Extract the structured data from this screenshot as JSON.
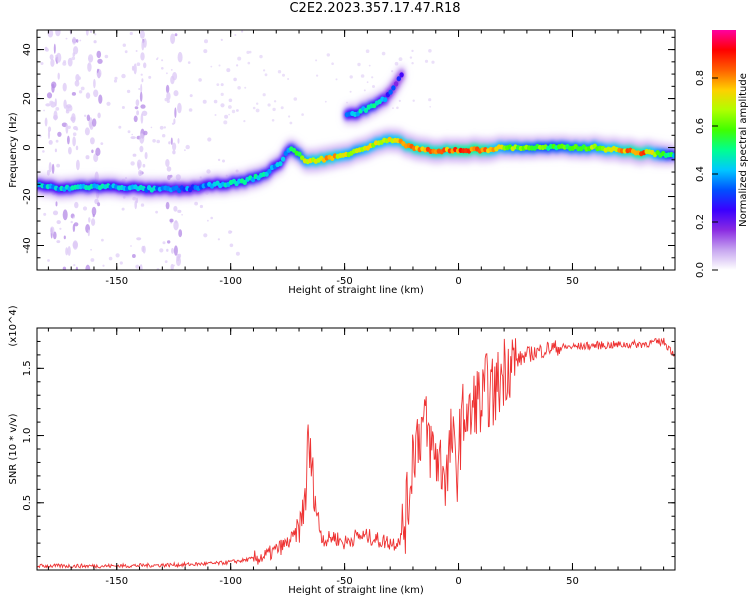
{
  "title": "C2E2.2023.357.17.47.R18",
  "chart_data": [
    {
      "type": "heatmap",
      "xlabel": "Height of straight line (km)",
      "ylabel": "Frequency (Hz)",
      "xlim": [
        -185,
        95
      ],
      "ylim": [
        -50,
        48
      ],
      "x_ticks": [
        -150,
        -100,
        -50,
        0,
        50
      ],
      "y_ticks": [
        -40,
        -20,
        0,
        20,
        40
      ],
      "colorbar": {
        "label": "Normalized spectral amplitude",
        "range": [
          0.0,
          1.0
        ],
        "ticks": [
          "0.0",
          "0.2",
          "0.4",
          "0.6",
          "0.8"
        ],
        "colormap": [
          "#ffffff",
          "#c7a6f0",
          "#8a2be2",
          "#3a00ff",
          "#0050ff",
          "#00c8ff",
          "#00ff90",
          "#40ff00",
          "#b0ff00",
          "#ffd000",
          "#ff6000",
          "#ff0000",
          "#ff00a0"
        ]
      },
      "ridge": {
        "x": [
          -185,
          -175,
          -165,
          -150,
          -135,
          -120,
          -105,
          -95,
          -85,
          -78,
          -74,
          -70,
          -66,
          -62,
          -55,
          -50,
          -45,
          -40,
          -35,
          -30,
          -25,
          -20,
          -15,
          -10,
          -5,
          0,
          10,
          20,
          40,
          60,
          80,
          95
        ],
        "freq": [
          -15,
          -17,
          -16,
          -16,
          -17,
          -17,
          -15,
          -14,
          -11,
          -6,
          0,
          -3,
          -6,
          -5,
          -4,
          -3,
          -1,
          0,
          2,
          3,
          2,
          0,
          -1,
          -2,
          -1,
          -1,
          -1,
          0,
          0,
          0,
          -2,
          -3
        ],
        "amplitude": [
          0.45,
          0.45,
          0.5,
          0.45,
          0.45,
          0.4,
          0.45,
          0.5,
          0.5,
          0.45,
          0.5,
          0.6,
          0.75,
          0.8,
          0.8,
          0.75,
          0.7,
          0.75,
          0.75,
          0.75,
          0.8,
          0.85,
          0.85,
          0.85,
          0.85,
          0.9,
          0.9,
          0.7,
          0.6,
          0.7,
          0.9,
          0.5
        ]
      },
      "branch": {
        "x": [
          -49,
          -45,
          -40,
          -36,
          -32,
          -28,
          -24
        ],
        "freq": [
          13,
          14,
          16,
          18,
          20,
          25,
          31
        ],
        "amplitude": [
          0.45,
          0.45,
          0.55,
          0.5,
          0.4,
          0.3,
          0.25
        ]
      },
      "noise_columns_x": [
        -178,
        -170,
        -160,
        -140,
        -125
      ]
    },
    {
      "type": "line",
      "xlabel": "Height of straight line (km)",
      "ylabel": "SNR (10 * v/v)",
      "y_multiplier": "(x10^4)",
      "xlim": [
        -185,
        95
      ],
      "ylim": [
        0,
        1.8
      ],
      "x_ticks": [
        -150,
        -100,
        -50,
        0,
        50
      ],
      "y_ticks": [
        "0.5",
        "1.0",
        "1.5"
      ],
      "line_color": "#ee3333",
      "series": [
        {
          "name": "",
          "x": [
            -185,
            -150,
            -120,
            -105,
            -95,
            -85,
            -80,
            -75,
            -72,
            -69,
            -67,
            -66,
            -64,
            -62,
            -60,
            -58,
            -55,
            -50,
            -45,
            -40,
            -35,
            -28,
            -25,
            -22,
            -20,
            -18,
            -15,
            -12,
            -8,
            -5,
            -3,
            -1,
            1,
            3,
            5,
            8,
            10,
            12,
            15,
            18,
            20,
            22,
            25,
            30,
            40,
            60,
            80,
            90,
            95
          ],
          "y": [
            0.03,
            0.03,
            0.04,
            0.05,
            0.07,
            0.1,
            0.15,
            0.2,
            0.25,
            0.35,
            0.6,
            0.95,
            0.7,
            0.4,
            0.25,
            0.22,
            0.25,
            0.2,
            0.25,
            0.25,
            0.22,
            0.2,
            0.25,
            0.5,
            0.9,
            1.0,
            1.1,
            0.9,
            0.8,
            0.7,
            1.0,
            0.7,
            1.05,
            1.2,
            1.1,
            1.3,
            1.2,
            1.35,
            1.3,
            1.4,
            1.5,
            1.55,
            1.55,
            1.6,
            1.65,
            1.67,
            1.68,
            1.7,
            1.6
          ]
        }
      ]
    }
  ]
}
